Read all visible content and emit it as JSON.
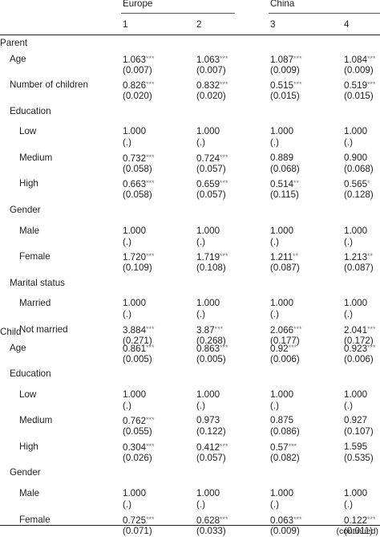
{
  "table": {
    "group_headers": [
      "Europe",
      "China"
    ],
    "model_numbers": [
      "1",
      "2",
      "3",
      "4"
    ],
    "sections": [
      {
        "label": "Parent",
        "items": [
          {
            "kind": "var",
            "label": "Age",
            "cells": [
              {
                "est": "1.063",
                "sig": "***",
                "se": "(0.007)"
              },
              {
                "est": "1.063",
                "sig": "***",
                "se": "(0.007)"
              },
              {
                "est": "1.087",
                "sig": "***",
                "se": "(0.009)"
              },
              {
                "est": "1.084",
                "sig": "***",
                "se": "(0.009)"
              }
            ]
          },
          {
            "kind": "var",
            "label": "Number of children",
            "cells": [
              {
                "est": "0.826",
                "sig": "***",
                "se": "(0.020)"
              },
              {
                "est": "0.832",
                "sig": "***",
                "se": "(0.020)"
              },
              {
                "est": "0.515",
                "sig": "***",
                "se": "(0.015)"
              },
              {
                "est": "0.519",
                "sig": "***",
                "se": "(0.015)"
              }
            ]
          },
          {
            "kind": "group",
            "label": "Education"
          },
          {
            "kind": "sub",
            "label": "Low",
            "cells": [
              {
                "est": "1.000",
                "sig": "",
                "se": "(.)"
              },
              {
                "est": "1.000",
                "sig": "",
                "se": "(.)"
              },
              {
                "est": "1.000",
                "sig": "",
                "se": "(.)"
              },
              {
                "est": "1.000",
                "sig": "",
                "se": "(.)"
              }
            ]
          },
          {
            "kind": "sub",
            "label": "Medium",
            "cells": [
              {
                "est": "0.732",
                "sig": "***",
                "se": "(0.058)"
              },
              {
                "est": "0.724",
                "sig": "***",
                "se": "(0.057)"
              },
              {
                "est": "0.889",
                "sig": "",
                "se": "(0.068)"
              },
              {
                "est": "0.900",
                "sig": "",
                "se": "(0.068)"
              }
            ]
          },
          {
            "kind": "sub",
            "label": "High",
            "cells": [
              {
                "est": "0.663",
                "sig": "***",
                "se": "(0.058)"
              },
              {
                "est": "0.659",
                "sig": "***",
                "se": "(0.057)"
              },
              {
                "est": "0.514",
                "sig": "**",
                "se": "(0.115)"
              },
              {
                "est": "0.565",
                "sig": "*",
                "se": "(0.128)"
              }
            ]
          },
          {
            "kind": "group",
            "label": "Gender"
          },
          {
            "kind": "sub",
            "label": "Male",
            "cells": [
              {
                "est": "1.000",
                "sig": "",
                "se": "(.)"
              },
              {
                "est": "1.000",
                "sig": "",
                "se": "(.)"
              },
              {
                "est": "1.000",
                "sig": "",
                "se": "(.)"
              },
              {
                "est": "1.000",
                "sig": "",
                "se": "(.)"
              }
            ]
          },
          {
            "kind": "sub",
            "label": "Female",
            "cells": [
              {
                "est": "1.720",
                "sig": "***",
                "se": "(0.109)"
              },
              {
                "est": "1.719",
                "sig": "***",
                "se": "(0.108)"
              },
              {
                "est": "1.211",
                "sig": "**",
                "se": "(0.087)"
              },
              {
                "est": "1.213",
                "sig": "**",
                "se": "(0.087)"
              }
            ]
          },
          {
            "kind": "group",
            "label": "Marital status"
          },
          {
            "kind": "sub",
            "label": "Married",
            "cells": [
              {
                "est": "1.000",
                "sig": "",
                "se": "(.)"
              },
              {
                "est": "1.000",
                "sig": "",
                "se": "(.)"
              },
              {
                "est": "1.000",
                "sig": "",
                "se": "(.)"
              },
              {
                "est": "1.000",
                "sig": "",
                "se": "(.)"
              }
            ]
          },
          {
            "kind": "sub",
            "label": "Not married",
            "cells": [
              {
                "est": "3.884",
                "sig": "***",
                "se": "(0.271)"
              },
              {
                "est": "3.87",
                "sig": "***",
                "se": "(0.268)"
              },
              {
                "est": "2.066",
                "sig": "***",
                "se": "(0.177)"
              },
              {
                "est": "2.041",
                "sig": "***",
                "se": "(0.172)"
              }
            ]
          }
        ]
      },
      {
        "label": "Child",
        "items": [
          {
            "kind": "var",
            "label": "Age",
            "cells": [
              {
                "est": "0.861",
                "sig": "***",
                "se": "(0.005)"
              },
              {
                "est": "0.863",
                "sig": "***",
                "se": "(0.005)"
              },
              {
                "est": "0.92",
                "sig": "***",
                "se": "(0.006)"
              },
              {
                "est": "0.923",
                "sig": "***",
                "se": "(0.006)"
              }
            ]
          },
          {
            "kind": "group",
            "label": "Education"
          },
          {
            "kind": "sub",
            "label": "Low",
            "cells": [
              {
                "est": "1.000",
                "sig": "",
                "se": "(.)"
              },
              {
                "est": "1.000",
                "sig": "",
                "se": "(.)"
              },
              {
                "est": "1.000",
                "sig": "",
                "se": "(.)"
              },
              {
                "est": "1.000",
                "sig": "",
                "se": "(.)"
              }
            ]
          },
          {
            "kind": "sub",
            "label": "Medium",
            "cells": [
              {
                "est": "0.762",
                "sig": "***",
                "se": "(0.055)"
              },
              {
                "est": "0.973",
                "sig": "",
                "se": "(0.122)"
              },
              {
                "est": "0.875",
                "sig": "",
                "se": "(0.086)"
              },
              {
                "est": "0.927",
                "sig": "",
                "se": "(0.107)"
              }
            ]
          },
          {
            "kind": "sub",
            "label": "High",
            "cells": [
              {
                "est": "0.304",
                "sig": "***",
                "se": "(0.026)"
              },
              {
                "est": "0.412",
                "sig": "***",
                "se": "(0.057)"
              },
              {
                "est": "0.57",
                "sig": "***",
                "se": "(0.082)"
              },
              {
                "est": "1.595",
                "sig": "",
                "se": "(0.535)"
              }
            ]
          },
          {
            "kind": "group",
            "label": "Gender"
          },
          {
            "kind": "sub",
            "label": "Male",
            "cells": [
              {
                "est": "1.000",
                "sig": "",
                "se": "(.)"
              },
              {
                "est": "1.000",
                "sig": "",
                "se": "(.)"
              },
              {
                "est": "1.000",
                "sig": "",
                "se": "(.)"
              },
              {
                "est": "1.000",
                "sig": "",
                "se": "(.)"
              }
            ]
          },
          {
            "kind": "sub",
            "label": "Female",
            "cells": [
              {
                "est": "0.725",
                "sig": "***",
                "se": "(0.071)"
              },
              {
                "est": "0.628",
                "sig": "***",
                "se": "(0.033)"
              },
              {
                "est": "0.063",
                "sig": "***",
                "se": "(0.009)"
              },
              {
                "est": "0.122",
                "sig": "***",
                "se": "(0.011)"
              }
            ]
          }
        ]
      }
    ],
    "footer_note": "(continued)"
  }
}
